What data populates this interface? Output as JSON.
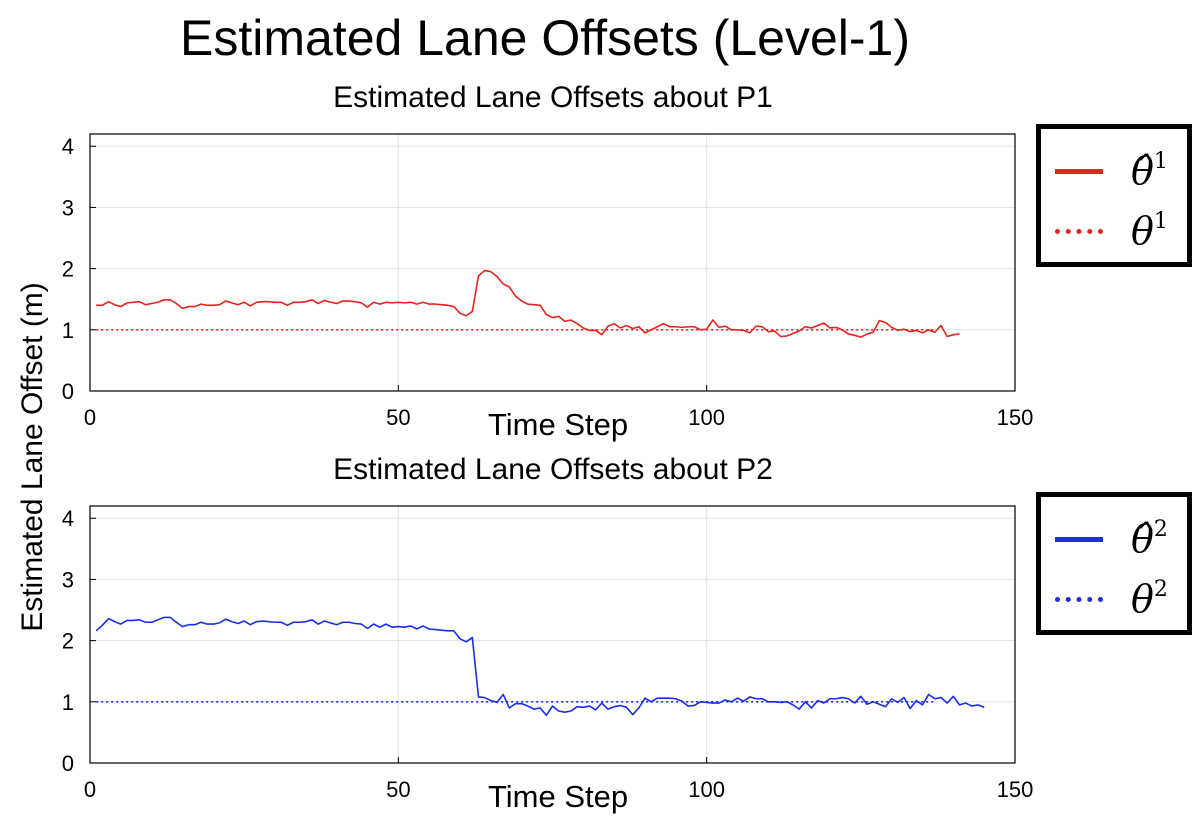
{
  "figure": {
    "title": "Estimated Lane Offsets (Level-1)",
    "ylabel": "Estimated Lane Offset (m)"
  },
  "chart_data": [
    {
      "type": "line",
      "title": "Estimated Lane Offsets about P1",
      "xlabel": "Time Step",
      "ylabel": "Estimated Lane Offset (m)",
      "xlim": [
        0,
        150
      ],
      "ylim": [
        0,
        4.2
      ],
      "xticks": [
        0,
        50,
        100,
        150
      ],
      "yticks": [
        0,
        1,
        2,
        3,
        4
      ],
      "grid": true,
      "legend_position": "outside-right",
      "series": [
        {
          "name": "θ̂1",
          "legend_symbol": "θ̂",
          "legend_sup": "1",
          "style": "solid",
          "color": "#e8231f",
          "x_start": 1,
          "values": [
            1.4,
            1.4,
            1.46,
            1.41,
            1.38,
            1.44,
            1.45,
            1.46,
            1.41,
            1.43,
            1.45,
            1.49,
            1.49,
            1.43,
            1.35,
            1.38,
            1.38,
            1.42,
            1.4,
            1.4,
            1.41,
            1.47,
            1.44,
            1.41,
            1.45,
            1.39,
            1.45,
            1.46,
            1.46,
            1.45,
            1.45,
            1.4,
            1.45,
            1.45,
            1.46,
            1.49,
            1.43,
            1.48,
            1.45,
            1.43,
            1.47,
            1.47,
            1.46,
            1.44,
            1.37,
            1.45,
            1.42,
            1.45,
            1.44,
            1.45,
            1.44,
            1.45,
            1.42,
            1.45,
            1.42,
            1.42,
            1.41,
            1.4,
            1.38,
            1.27,
            1.23,
            1.3,
            1.88,
            1.97,
            1.95,
            1.87,
            1.75,
            1.7,
            1.55,
            1.47,
            1.42,
            1.41,
            1.4,
            1.25,
            1.2,
            1.22,
            1.14,
            1.16,
            1.1,
            1.03,
            0.99,
            0.99,
            0.92,
            1.06,
            1.1,
            1.03,
            1.07,
            1.02,
            1.05,
            0.95,
            1.0,
            1.05,
            1.1,
            1.05,
            1.05,
            1.04,
            1.05,
            1.05,
            1.0,
            1.01,
            1.16,
            1.04,
            1.06,
            1.0,
            1.0,
            0.99,
            0.95,
            1.06,
            1.05,
            0.97,
            0.98,
            0.89,
            0.9,
            0.94,
            0.98,
            1.05,
            1.03,
            1.07,
            1.11,
            1.03,
            1.04,
            1.0,
            0.93,
            0.91,
            0.88,
            0.93,
            0.96,
            1.15,
            1.12,
            1.04,
            0.99,
            1.01,
            0.97,
            0.99,
            0.95,
            1.0,
            0.96,
            1.07,
            0.89,
            0.92,
            0.93
          ]
        },
        {
          "name": "θ1",
          "legend_symbol": "θ",
          "legend_sup": "1",
          "style": "dotted",
          "color": "#e8231f",
          "x": [
            1,
            137
          ],
          "values": [
            1.0,
            1.0
          ]
        }
      ]
    },
    {
      "type": "line",
      "title": "Estimated Lane Offsets about P2",
      "xlabel": "Time Step",
      "ylabel": "Estimated Lane Offset (m)",
      "xlim": [
        0,
        150
      ],
      "ylim": [
        0,
        4.2
      ],
      "xticks": [
        0,
        50,
        100,
        150
      ],
      "yticks": [
        0,
        1,
        2,
        3,
        4
      ],
      "grid": true,
      "legend_position": "outside-right",
      "series": [
        {
          "name": "θ̂2",
          "legend_symbol": "θ̂",
          "legend_sup": "2",
          "style": "solid",
          "color": "#1a2ee8",
          "x_start": 1,
          "values": [
            2.16,
            2.25,
            2.36,
            2.31,
            2.27,
            2.33,
            2.33,
            2.34,
            2.3,
            2.3,
            2.34,
            2.38,
            2.38,
            2.3,
            2.23,
            2.26,
            2.26,
            2.3,
            2.27,
            2.27,
            2.29,
            2.35,
            2.31,
            2.28,
            2.32,
            2.26,
            2.31,
            2.32,
            2.31,
            2.3,
            2.3,
            2.25,
            2.3,
            2.3,
            2.31,
            2.34,
            2.27,
            2.32,
            2.29,
            2.26,
            2.3,
            2.3,
            2.28,
            2.27,
            2.2,
            2.27,
            2.22,
            2.27,
            2.22,
            2.23,
            2.22,
            2.24,
            2.19,
            2.24,
            2.19,
            2.18,
            2.17,
            2.16,
            2.16,
            2.03,
            1.98,
            2.05,
            1.08,
            1.07,
            1.02,
            0.99,
            1.12,
            0.9,
            0.97,
            0.97,
            0.93,
            0.88,
            0.9,
            0.78,
            0.93,
            0.85,
            0.83,
            0.85,
            0.92,
            0.91,
            0.93,
            0.87,
            0.98,
            0.88,
            0.92,
            0.94,
            0.91,
            0.79,
            0.9,
            1.06,
            1.0,
            1.06,
            1.06,
            1.06,
            1.05,
            1.01,
            0.93,
            0.94,
            1.0,
            0.99,
            0.98,
            0.98,
            1.03,
            1.0,
            1.06,
            1.01,
            1.08,
            1.05,
            1.05,
            1.0,
            1.0,
            0.99,
            1.0,
            0.95,
            0.88,
            1.0,
            0.9,
            1.02,
            0.98,
            1.05,
            1.05,
            1.07,
            1.05,
            0.98,
            1.09,
            0.96,
            1.0,
            0.96,
            0.92,
            1.05,
            0.99,
            1.07,
            0.89,
            1.02,
            0.95,
            1.12,
            1.05,
            1.07,
            0.98,
            1.09,
            0.95,
            0.98,
            0.93,
            0.95,
            0.91
          ]
        },
        {
          "name": "θ2",
          "legend_symbol": "θ",
          "legend_sup": "2",
          "style": "dotted",
          "color": "#1a2ee8",
          "x": [
            1,
            137
          ],
          "values": [
            1.0,
            1.0
          ]
        }
      ]
    }
  ]
}
